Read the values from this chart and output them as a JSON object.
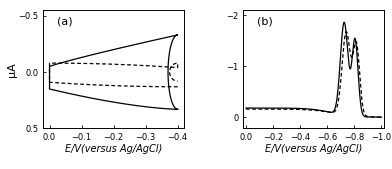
{
  "panel_a": {
    "label": "(a)",
    "xlabel": "E/V(versus Ag/AgCl)",
    "ylabel": "μA",
    "xlim": [
      0.02,
      -0.42
    ],
    "ylim": [
      0.5,
      -0.55
    ],
    "xticks": [
      0.0,
      -0.1,
      -0.2,
      -0.3,
      -0.4
    ],
    "yticks": [
      -0.5,
      0.0,
      0.5
    ]
  },
  "panel_b": {
    "label": "(b)",
    "xlabel": "E/V(versus Ag/AgCl)",
    "ylabel": "",
    "xlim": [
      0.02,
      -1.02
    ],
    "ylim": [
      0.22,
      -2.1
    ],
    "xticks": [
      0.0,
      -0.2,
      -0.4,
      -0.6,
      -0.8,
      -1.0
    ],
    "yticks": [
      0.0,
      -1.0,
      -2.0
    ]
  },
  "line_color": "#000000",
  "background_color": "#ffffff",
  "fontsize_label": 7,
  "fontsize_tick": 6,
  "fontsize_panel": 8
}
